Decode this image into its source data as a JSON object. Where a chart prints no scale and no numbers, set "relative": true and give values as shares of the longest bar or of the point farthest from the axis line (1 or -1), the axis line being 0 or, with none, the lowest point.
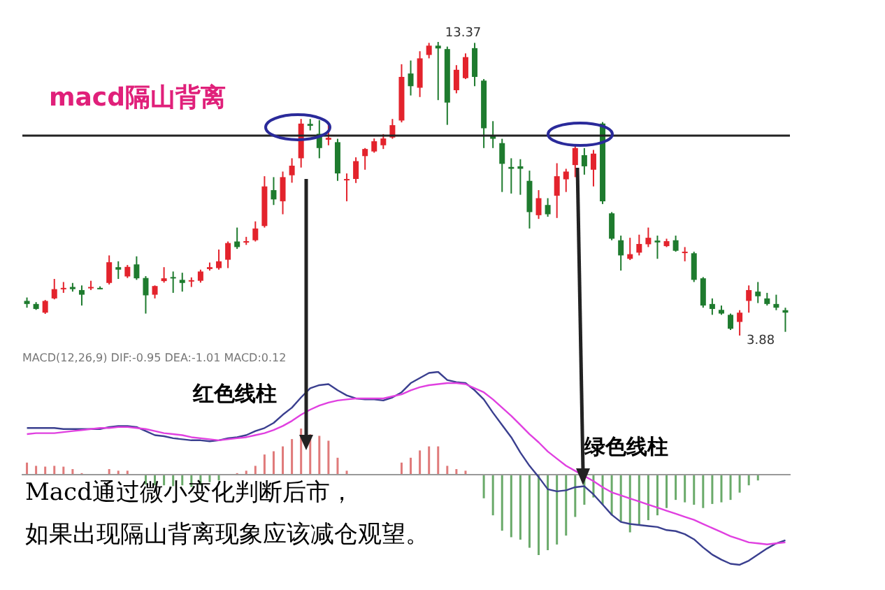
{
  "chart_data": [
    {
      "type": "candlestick",
      "title": "macd隔山背离",
      "categories": [
        null,
        null,
        null,
        null,
        null,
        null,
        null,
        null,
        null,
        null,
        null,
        null,
        null,
        null,
        null,
        null,
        null,
        null,
        null,
        null,
        null,
        null,
        null,
        null,
        null,
        null,
        null,
        null,
        null,
        null,
        null,
        null,
        null,
        null,
        null,
        null,
        null,
        null,
        null,
        null,
        null,
        null,
        null,
        null,
        null,
        null,
        null,
        null,
        null,
        null,
        null,
        null,
        null,
        null,
        null,
        null,
        null,
        null,
        null,
        null,
        null,
        null,
        null,
        null,
        null,
        null,
        null,
        null,
        null,
        null,
        null,
        null,
        null,
        null,
        null,
        null,
        null,
        null,
        null,
        null,
        null,
        null,
        null,
        null
      ],
      "ohlc": [
        [
          5.0,
          5.11,
          4.78,
          4.9
        ],
        [
          4.9,
          4.96,
          4.71,
          4.74
        ],
        [
          4.62,
          5.03,
          4.58,
          5.0
        ],
        [
          5.08,
          5.71,
          5.05,
          5.38
        ],
        [
          5.38,
          5.61,
          5.26,
          5.42
        ],
        [
          5.45,
          5.58,
          5.3,
          5.38
        ],
        [
          5.35,
          5.5,
          4.85,
          5.2
        ],
        [
          5.41,
          5.65,
          5.35,
          5.45
        ],
        [
          5.42,
          5.47,
          5.38,
          5.41
        ],
        [
          5.58,
          6.47,
          5.53,
          6.25
        ],
        [
          6.09,
          6.28,
          5.71,
          6.01
        ],
        [
          5.79,
          6.16,
          5.74,
          6.1
        ],
        [
          6.18,
          6.44,
          5.68,
          5.73
        ],
        [
          5.74,
          5.8,
          4.59,
          5.18
        ],
        [
          5.2,
          5.5,
          5.08,
          5.48
        ],
        [
          5.64,
          6.09,
          5.59,
          5.73
        ],
        [
          5.77,
          5.95,
          5.26,
          5.73
        ],
        [
          5.68,
          5.91,
          5.3,
          5.58
        ],
        [
          5.64,
          5.76,
          5.45,
          5.67
        ],
        [
          5.65,
          6.01,
          5.59,
          5.95
        ],
        [
          6.03,
          6.24,
          5.98,
          6.09
        ],
        [
          6.06,
          6.66,
          6.01,
          6.28
        ],
        [
          6.33,
          6.92,
          6.06,
          6.87
        ],
        [
          6.92,
          7.37,
          6.68,
          6.74
        ],
        [
          6.89,
          7.07,
          6.81,
          6.93
        ],
        [
          6.96,
          7.57,
          6.92,
          7.34
        ],
        [
          7.42,
          9.03,
          7.37,
          8.7
        ],
        [
          8.58,
          9.0,
          8.1,
          8.28
        ],
        [
          8.22,
          9.18,
          7.8,
          9.0
        ],
        [
          9.06,
          9.61,
          8.82,
          9.37
        ],
        [
          9.61,
          10.88,
          9.31,
          10.73
        ],
        [
          10.72,
          10.88,
          10.51,
          10.66
        ],
        [
          10.4,
          10.84,
          9.61,
          9.94
        ],
        [
          10.21,
          10.77,
          10.03,
          10.27
        ],
        [
          10.13,
          10.24,
          8.88,
          9.12
        ],
        [
          8.91,
          9.12,
          8.22,
          8.94
        ],
        [
          8.94,
          9.64,
          8.81,
          9.52
        ],
        [
          9.68,
          9.94,
          9.24,
          9.91
        ],
        [
          9.83,
          10.25,
          9.79,
          10.16
        ],
        [
          10.03,
          10.39,
          9.91,
          10.25
        ],
        [
          10.28,
          10.88,
          10.24,
          10.68
        ],
        [
          10.83,
          12.65,
          10.77,
          12.24
        ],
        [
          12.35,
          12.77,
          11.64,
          11.94
        ],
        [
          11.89,
          13.07,
          11.59,
          12.84
        ],
        [
          12.95,
          13.34,
          12.84,
          13.25
        ],
        [
          13.25,
          13.37,
          11.49,
          13.16
        ],
        [
          13.14,
          13.22,
          10.69,
          11.41
        ],
        [
          11.81,
          12.62,
          11.71,
          12.47
        ],
        [
          12.2,
          13.0,
          12.17,
          12.88
        ],
        [
          13.17,
          13.34,
          11.94,
          12.24
        ],
        [
          12.12,
          12.17,
          9.94,
          10.58
        ],
        [
          10.35,
          10.81,
          9.94,
          10.24
        ],
        [
          10.1,
          10.24,
          8.52,
          9.43
        ],
        [
          9.33,
          9.61,
          8.47,
          9.27
        ],
        [
          9.35,
          9.58,
          8.43,
          9.27
        ],
        [
          8.88,
          9.21,
          7.34,
          7.87
        ],
        [
          7.77,
          8.58,
          7.65,
          8.32
        ],
        [
          8.1,
          8.32,
          7.72,
          7.8
        ],
        [
          8.4,
          9.45,
          7.68,
          9.03
        ],
        [
          8.93,
          9.27,
          8.52,
          9.18
        ],
        [
          9.39,
          10.03,
          9.0,
          9.94
        ],
        [
          9.71,
          9.94,
          9.08,
          9.35
        ],
        [
          9.24,
          9.88,
          8.7,
          9.76
        ],
        [
          10.73,
          10.78,
          8.13,
          8.22
        ],
        [
          7.83,
          7.87,
          6.96,
          7.01
        ],
        [
          6.96,
          7.11,
          5.98,
          6.47
        ],
        [
          6.36,
          7.04,
          6.32,
          6.51
        ],
        [
          6.56,
          7.14,
          6.47,
          6.84
        ],
        [
          6.83,
          7.37,
          6.74,
          7.04
        ],
        [
          6.95,
          7.11,
          6.36,
          6.89
        ],
        [
          6.77,
          7.01,
          6.74,
          6.93
        ],
        [
          6.96,
          7.11,
          6.59,
          6.62
        ],
        [
          6.57,
          6.74,
          6.28,
          6.59
        ],
        [
          6.54,
          6.59,
          5.61,
          5.68
        ],
        [
          5.73,
          5.77,
          4.78,
          4.85
        ],
        [
          4.9,
          5.08,
          4.55,
          4.74
        ],
        [
          4.71,
          4.85,
          4.55,
          4.59
        ],
        [
          4.55,
          4.59,
          4.06,
          4.1
        ],
        [
          4.32,
          4.7,
          3.88,
          4.62
        ],
        [
          5.0,
          5.5,
          4.62,
          5.35
        ],
        [
          5.3,
          5.61,
          4.93,
          5.15
        ],
        [
          5.08,
          5.26,
          4.85,
          4.9
        ],
        [
          4.9,
          5.2,
          4.7,
          4.78
        ],
        [
          4.7,
          4.78,
          4.0,
          4.62
        ]
      ],
      "colors": [
        "#1e7b2e",
        "#1e7b2e",
        "#e3232c",
        "#e3232c",
        "#e3232c",
        "#1e7b2e",
        "#1e7b2e",
        "#e3232c",
        "#1e7b2e",
        "#e3232c",
        "#1e7b2e",
        "#e3232c",
        "#1e7b2e",
        "#1e7b2e",
        "#e3232c",
        "#e3232c",
        "#1e7b2e",
        "#1e7b2e",
        "#e3232c",
        "#e3232c",
        "#e3232c",
        "#e3232c",
        "#e3232c",
        "#1e7b2e",
        "#e3232c",
        "#e3232c",
        "#e3232c",
        "#1e7b2e",
        "#e3232c",
        "#e3232c",
        "#e3232c",
        "#1e7b2e",
        "#1e7b2e",
        "#e3232c",
        "#1e7b2e",
        "#e3232c",
        "#e3232c",
        "#e3232c",
        "#e3232c",
        "#e3232c",
        "#e3232c",
        "#e3232c",
        "#1e7b2e",
        "#e3232c",
        "#e3232c",
        "#1e7b2e",
        "#1e7b2e",
        "#e3232c",
        "#e3232c",
        "#1e7b2e",
        "#1e7b2e",
        "#1e7b2e",
        "#1e7b2e",
        "#1e7b2e",
        "#1e7b2e",
        "#1e7b2e",
        "#e3232c",
        "#1e7b2e",
        "#e3232c",
        "#e3232c",
        "#e3232c",
        "#1e7b2e",
        "#e3232c",
        "#1e7b2e",
        "#1e7b2e",
        "#1e7b2e",
        "#e3232c",
        "#e3232c",
        "#e3232c",
        "#1e7b2e",
        "#e3232c",
        "#1e7b2e",
        "#e3232c",
        "#1e7b2e",
        "#1e7b2e",
        "#1e7b2e",
        "#1e7b2e",
        "#1e7b2e",
        "#e3232c",
        "#e3232c",
        "#1e7b2e",
        "#1e7b2e",
        "#1e7b2e",
        "#1e7b2e"
      ],
      "ref_lines": [
        {
          "axis": "y",
          "value": 10.34,
          "color": "#222222"
        }
      ],
      "annotations": [
        "13.37",
        "3.88"
      ]
    },
    {
      "type": "bar",
      "relative": true,
      "categories": [
        null,
        null,
        null,
        null,
        null,
        null,
        null,
        null,
        null,
        null,
        null,
        null,
        null,
        null,
        null,
        null,
        null,
        null,
        null,
        null,
        null,
        null,
        null,
        null,
        null,
        null,
        null,
        null,
        null,
        null,
        null,
        null,
        null,
        null,
        null,
        null,
        null,
        null,
        null,
        null,
        null,
        null,
        null,
        null,
        null,
        null,
        null,
        null,
        null,
        null,
        null,
        null,
        null,
        null,
        null,
        null,
        null,
        null,
        null,
        null,
        null,
        null,
        null,
        null,
        null,
        null,
        null,
        null,
        null,
        null,
        null,
        null,
        null,
        null,
        null,
        null,
        null,
        null,
        null,
        null,
        null,
        null,
        null,
        null
      ],
      "values": [
        0.14,
        0.1,
        0.09,
        0.1,
        0.09,
        0.06,
        0.01,
        0,
        0,
        0.06,
        0.04,
        0.04,
        0,
        -0.13,
        -0.14,
        -0.14,
        -0.15,
        -0.14,
        -0.16,
        -0.14,
        -0.1,
        -0.08,
        0,
        0.01,
        0.04,
        0.1,
        0.24,
        0.28,
        0.34,
        0.43,
        0.56,
        0.49,
        0.47,
        0.41,
        0.2,
        0.04,
        0,
        0,
        0,
        0,
        0,
        0.14,
        0.2,
        0.29,
        0.34,
        0.34,
        0.1,
        0.06,
        0.04,
        0,
        -0.3,
        -0.51,
        -0.7,
        -0.78,
        -0.81,
        -0.91,
        -1,
        -0.94,
        -0.87,
        -0.76,
        -0.53,
        -0.38,
        -0.29,
        -0.38,
        -0.51,
        -0.59,
        -0.72,
        -0.63,
        -0.57,
        -0.51,
        -0.42,
        -0.32,
        -0.35,
        -0.38,
        -0.42,
        -0.37,
        -0.35,
        -0.32,
        -0.23,
        -0.14,
        -0.08,
        0,
        0,
        0
      ],
      "colors": [
        "#e07a7a",
        "#e07a7a",
        "#e07a7a",
        "#e07a7a",
        "#e07a7a",
        "#e07a7a",
        "#e07a7a",
        "#e07a7a",
        "#e07a7a",
        "#e07a7a",
        "#e07a7a",
        "#e07a7a",
        "#e07a7a",
        "#6aaa6a",
        "#6aaa6a",
        "#6aaa6a",
        "#6aaa6a",
        "#6aaa6a",
        "#6aaa6a",
        "#6aaa6a",
        "#6aaa6a",
        "#6aaa6a",
        "#e07a7a",
        "#e07a7a",
        "#e07a7a",
        "#e07a7a",
        "#e07a7a",
        "#e07a7a",
        "#e07a7a",
        "#e07a7a",
        "#e07a7a",
        "#e07a7a",
        "#e07a7a",
        "#e07a7a",
        "#e07a7a",
        "#e07a7a",
        "#e07a7a",
        "#e07a7a",
        "#e07a7a",
        "#e07a7a",
        "#e07a7a",
        "#e07a7a",
        "#e07a7a",
        "#e07a7a",
        "#e07a7a",
        "#e07a7a",
        "#e07a7a",
        "#e07a7a",
        "#e07a7a",
        "#e07a7a",
        "#6aaa6a",
        "#6aaa6a",
        "#6aaa6a",
        "#6aaa6a",
        "#6aaa6a",
        "#6aaa6a",
        "#6aaa6a",
        "#6aaa6a",
        "#6aaa6a",
        "#6aaa6a",
        "#6aaa6a",
        "#6aaa6a",
        "#6aaa6a",
        "#6aaa6a",
        "#6aaa6a",
        "#6aaa6a",
        "#6aaa6a",
        "#6aaa6a",
        "#6aaa6a",
        "#6aaa6a",
        "#6aaa6a",
        "#6aaa6a",
        "#6aaa6a",
        "#6aaa6a",
        "#6aaa6a",
        "#6aaa6a",
        "#6aaa6a",
        "#6aaa6a",
        "#6aaa6a",
        "#6aaa6a",
        "#6aaa6a",
        "#6aaa6a",
        "#6aaa6a",
        "#6aaa6a"
      ],
      "annotations": [
        "MACD(12,26,9) DIF:-0.95 DEA:-1.01 MACD:0.12",
        "红色线柱",
        "绿色线柱",
        "Macd通过微小变化判断后市，",
        "如果出现隔山背离现象应该减仓观望。"
      ]
    },
    {
      "type": "line",
      "relative": true,
      "categories": [
        null,
        null,
        null,
        null,
        null,
        null,
        null,
        null,
        null,
        null,
        null,
        null,
        null,
        null,
        null,
        null,
        null,
        null,
        null,
        null,
        null,
        null,
        null,
        null,
        null,
        null,
        null,
        null,
        null,
        null,
        null,
        null,
        null,
        null,
        null,
        null,
        null,
        null,
        null,
        null,
        null,
        null,
        null,
        null,
        null,
        null,
        null,
        null,
        null,
        null,
        null,
        null,
        null,
        null,
        null,
        null,
        null,
        null,
        null,
        null,
        null,
        null,
        null,
        null,
        null,
        null,
        null,
        null,
        null,
        null,
        null,
        null,
        null,
        null,
        null,
        null,
        null,
        null,
        null,
        null,
        null,
        null,
        null,
        null
      ],
      "series": [
        {
          "color": "#3a3f8f",
          "values": [
            0.45,
            0.45,
            0.45,
            0.45,
            0.44,
            0.44,
            0.44,
            0.44,
            0.44,
            0.46,
            0.47,
            0.47,
            0.46,
            0.42,
            0.38,
            0.37,
            0.35,
            0.34,
            0.33,
            0.33,
            0.32,
            0.33,
            0.35,
            0.36,
            0.38,
            0.42,
            0.45,
            0.5,
            0.58,
            0.65,
            0.75,
            0.84,
            0.87,
            0.88,
            0.82,
            0.77,
            0.74,
            0.73,
            0.73,
            0.72,
            0.75,
            0.8,
            0.89,
            0.94,
            0.99,
            1.0,
            0.92,
            0.9,
            0.89,
            0.82,
            0.73,
            0.6,
            0.48,
            0.36,
            0.21,
            0.08,
            -0.03,
            -0.15,
            -0.17,
            -0.16,
            -0.13,
            -0.12,
            -0.2,
            -0.3,
            -0.4,
            -0.47,
            -0.49,
            -0.5,
            -0.51,
            -0.52,
            -0.55,
            -0.56,
            -0.59,
            -0.64,
            -0.72,
            -0.79,
            -0.84,
            -0.88,
            -0.89,
            -0.85,
            -0.79,
            -0.73,
            -0.68,
            -0.65
          ]
        },
        {
          "color": "#e040e0",
          "values": [
            0.39,
            0.4,
            0.4,
            0.4,
            0.41,
            0.42,
            0.43,
            0.44,
            0.45,
            0.45,
            0.46,
            0.46,
            0.45,
            0.44,
            0.42,
            0.4,
            0.39,
            0.38,
            0.36,
            0.35,
            0.34,
            0.33,
            0.34,
            0.35,
            0.36,
            0.38,
            0.4,
            0.43,
            0.47,
            0.52,
            0.58,
            0.63,
            0.67,
            0.7,
            0.72,
            0.73,
            0.74,
            0.74,
            0.74,
            0.74,
            0.76,
            0.78,
            0.82,
            0.85,
            0.87,
            0.88,
            0.89,
            0.89,
            0.88,
            0.84,
            0.8,
            0.73,
            0.65,
            0.57,
            0.48,
            0.39,
            0.31,
            0.22,
            0.15,
            0.08,
            0.03,
            -0.02,
            -0.07,
            -0.13,
            -0.18,
            -0.21,
            -0.24,
            -0.27,
            -0.3,
            -0.33,
            -0.36,
            -0.39,
            -0.42,
            -0.45,
            -0.49,
            -0.53,
            -0.57,
            -0.61,
            -0.64,
            -0.67,
            -0.68,
            -0.69,
            -0.68,
            -0.67
          ]
        }
      ]
    }
  ]
}
